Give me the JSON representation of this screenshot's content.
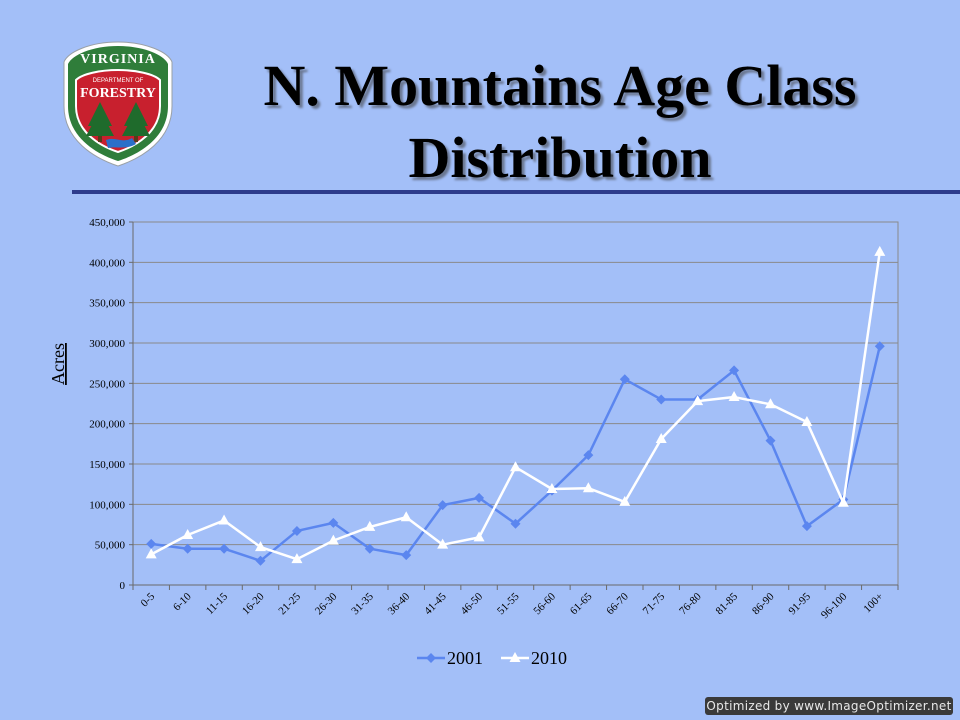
{
  "slide": {
    "title_line1": "N. Mountains Age Class",
    "title_line2": "Distribution",
    "watermark": "Optimized by www.ImageOptimizer.net"
  },
  "logo": {
    "top_text": "VIRGINIA",
    "mid_text_small": "DEPARTMENT OF",
    "mid_text": "FORESTRY",
    "colors": {
      "ring": "#2f7d3a",
      "shield": "#c8202e",
      "tree": "#1f6b2c",
      "water": "#2a6fc9"
    }
  },
  "chart_data": {
    "type": "line",
    "title": "",
    "xlabel": "",
    "ylabel": "Acres",
    "ylim": [
      0,
      450000
    ],
    "yticks": [
      0,
      50000,
      100000,
      150000,
      200000,
      250000,
      300000,
      350000,
      400000,
      450000
    ],
    "ytick_labels": [
      "0",
      "50,000",
      "100,000",
      "150,000",
      "200,000",
      "250,000",
      "300,000",
      "350,000",
      "400,000",
      "450,000"
    ],
    "grid": true,
    "legend_position": "bottom",
    "categories": [
      "0-5",
      "6-10",
      "11-15",
      "16-20",
      "21-25",
      "26-30",
      "31-35",
      "36-40",
      "41-45",
      "46-50",
      "51-55",
      "56-60",
      "61-65",
      "66-70",
      "71-75",
      "76-80",
      "81-85",
      "86-90",
      "91-95",
      "96-100",
      "100+"
    ],
    "series": [
      {
        "name": "2001",
        "color": "#5b86ef",
        "marker": "diamond",
        "values": [
          51000,
          45000,
          45000,
          30000,
          67000,
          77000,
          45000,
          37000,
          99000,
          108000,
          76000,
          117000,
          161000,
          255000,
          230000,
          230000,
          266000,
          179000,
          73000,
          106000,
          296000
        ]
      },
      {
        "name": "2010",
        "color": "#ffffff",
        "marker": "triangle",
        "values": [
          38000,
          62000,
          80000,
          47000,
          32000,
          55000,
          72000,
          84000,
          50000,
          59000,
          146000,
          119000,
          120000,
          103000,
          181000,
          228000,
          233000,
          224000,
          202000,
          102000,
          413000
        ]
      }
    ]
  }
}
